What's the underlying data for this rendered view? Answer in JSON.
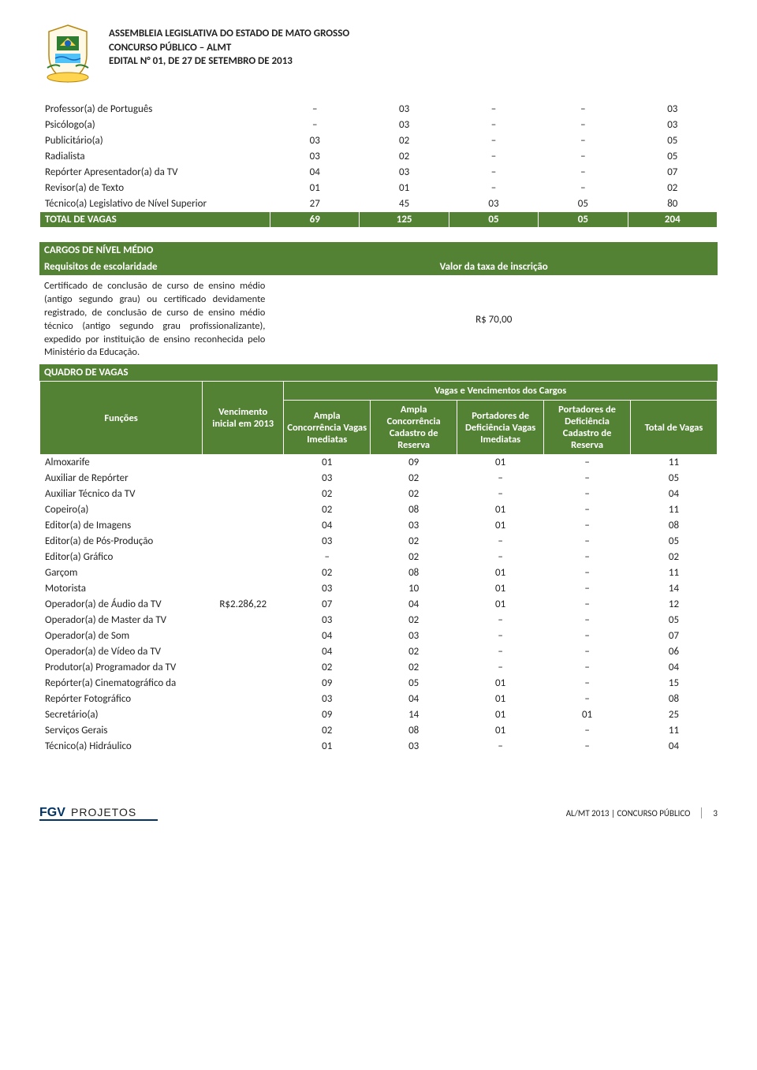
{
  "colors": {
    "header_green": "#548235",
    "header_text": "#ffffff",
    "body_text": "#222222",
    "background": "#ffffff",
    "footer_divider": "#999999"
  },
  "header": {
    "line1": "ASSEMBLEIA LEGISLATIVA DO ESTADO DE MATO GROSSO",
    "line2": "CONCURSO PÚBLICO – ALMT",
    "line3": "EDITAL N° 01, DE 27 DE SETEMBRO DE 2013"
  },
  "table1": {
    "rows": [
      {
        "funcao": "Professor(a) de Português",
        "c1": "–",
        "c2": "03",
        "c3": "–",
        "c4": "–",
        "c5": "03"
      },
      {
        "funcao": "Psicólogo(a)",
        "c1": "–",
        "c2": "03",
        "c3": "–",
        "c4": "–",
        "c5": "03"
      },
      {
        "funcao": "Publicitário(a)",
        "c1": "03",
        "c2": "02",
        "c3": "–",
        "c4": "–",
        "c5": "05"
      },
      {
        "funcao": "Radialista",
        "c1": "03",
        "c2": "02",
        "c3": "–",
        "c4": "–",
        "c5": "05"
      },
      {
        "funcao": "Repórter Apresentador(a) da TV",
        "c1": "04",
        "c2": "03",
        "c3": "–",
        "c4": "–",
        "c5": "07"
      },
      {
        "funcao": "Revisor(a) de Texto",
        "c1": "01",
        "c2": "01",
        "c3": "–",
        "c4": "–",
        "c5": "02"
      },
      {
        "funcao": "Técnico(a) Legislativo de Nível Superior",
        "c1": "27",
        "c2": "45",
        "c3": "03",
        "c4": "05",
        "c5": "80"
      }
    ],
    "total_label": "TOTAL DE VAGAS",
    "total": {
      "c1": "69",
      "c2": "125",
      "c3": "05",
      "c4": "05",
      "c5": "204"
    }
  },
  "nivel_medio": {
    "title": "CARGOS DE NÍVEL MÉDIO",
    "req_label": "Requisitos de escolaridade",
    "taxa_label": "Valor da taxa de inscrição",
    "req_text": "Certificado de conclusão de curso de ensino médio (antigo segundo grau) ou certificado devidamente registrado, de conclusão de curso de ensino médio técnico (antigo segundo grau profissionalizante), expedido por instituição de ensino reconhecida pelo Ministério da Educação.",
    "taxa_value": "R$ 70,00",
    "quadro_label": "QUADRO DE VAGAS"
  },
  "table2": {
    "header_vagas": "Vagas e Vencimentos dos Cargos",
    "col_funcoes": "Funções",
    "col_vencimento": "Vencimento inicial em 2013",
    "col_ampla_imed": "Ampla Concorrência Vagas Imediatas",
    "col_ampla_res": "Ampla Concorrência Cadastro de Reserva",
    "col_def_imed": "Portadores de Deficiência Vagas Imediatas",
    "col_def_res": "Portadores de Deficiência Cadastro de Reserva",
    "col_total": "Total de Vagas",
    "vencimento_value": "R$2.286,22",
    "rows": [
      {
        "funcao": "Almoxarife",
        "c1": "01",
        "c2": "09",
        "c3": "01",
        "c4": "–",
        "c5": "11"
      },
      {
        "funcao": "Auxiliar de Repórter",
        "c1": "03",
        "c2": "02",
        "c3": "–",
        "c4": "–",
        "c5": "05"
      },
      {
        "funcao": "Auxiliar Técnico da TV",
        "c1": "02",
        "c2": "02",
        "c3": "–",
        "c4": "–",
        "c5": "04"
      },
      {
        "funcao": "Copeiro(a)",
        "c1": "02",
        "c2": "08",
        "c3": "01",
        "c4": "–",
        "c5": "11"
      },
      {
        "funcao": "Editor(a) de Imagens",
        "c1": "04",
        "c2": "03",
        "c3": "01",
        "c4": "–",
        "c5": "08"
      },
      {
        "funcao": "Editor(a) de Pós-Produção",
        "c1": "03",
        "c2": "02",
        "c3": "–",
        "c4": "–",
        "c5": "05"
      },
      {
        "funcao": "Editor(a) Gráfico",
        "c1": "–",
        "c2": "02",
        "c3": "–",
        "c4": "–",
        "c5": "02"
      },
      {
        "funcao": "Garçom",
        "c1": "02",
        "c2": "08",
        "c3": "01",
        "c4": "–",
        "c5": "11"
      },
      {
        "funcao": "Motorista",
        "c1": "03",
        "c2": "10",
        "c3": "01",
        "c4": "–",
        "c5": "14"
      },
      {
        "funcao": "Operador(a) de Áudio da TV",
        "c1": "07",
        "c2": "04",
        "c3": "01",
        "c4": "–",
        "c5": "12"
      },
      {
        "funcao": "Operador(a) de Master da TV",
        "c1": "03",
        "c2": "02",
        "c3": "–",
        "c4": "–",
        "c5": "05"
      },
      {
        "funcao": "Operador(a) de Som",
        "c1": "04",
        "c2": "03",
        "c3": "–",
        "c4": "–",
        "c5": "07"
      },
      {
        "funcao": "Operador(a) de Vídeo da TV",
        "c1": "04",
        "c2": "02",
        "c3": "–",
        "c4": "–",
        "c5": "06"
      },
      {
        "funcao": "Produtor(a) Programador da TV",
        "c1": "02",
        "c2": "02",
        "c3": "–",
        "c4": "–",
        "c5": "04"
      },
      {
        "funcao": "Repórter(a) Cinematográfico da",
        "c1": "09",
        "c2": "05",
        "c3": "01",
        "c4": "–",
        "c5": "15"
      },
      {
        "funcao": "Repórter Fotográfico",
        "c1": "03",
        "c2": "04",
        "c3": "01",
        "c4": "–",
        "c5": "08"
      },
      {
        "funcao": "Secretário(a)",
        "c1": "09",
        "c2": "14",
        "c3": "01",
        "c4": "01",
        "c5": "25"
      },
      {
        "funcao": "Serviços Gerais",
        "c1": "02",
        "c2": "08",
        "c3": "01",
        "c4": "–",
        "c5": "11"
      },
      {
        "funcao": "Técnico(a) Hidráulico",
        "c1": "01",
        "c2": "03",
        "c3": "–",
        "c4": "–",
        "c5": "04"
      }
    ]
  },
  "footer": {
    "logo_text_1": "FGV",
    "logo_text_2": "PROJETOS",
    "right_text": "AL/MT 2013 | CONCURSO PÚBLICO",
    "page_num": "3"
  }
}
